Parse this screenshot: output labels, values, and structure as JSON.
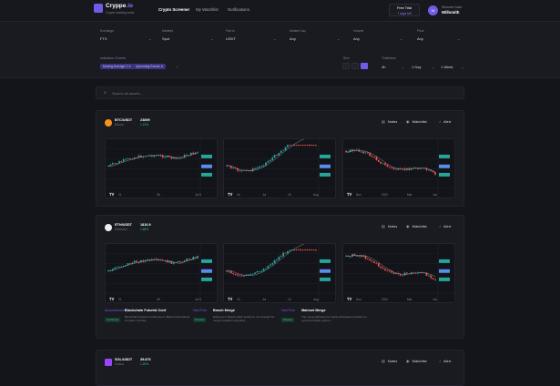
{
  "app": {
    "name_main": "Cryppe",
    "name_suffix": ".io",
    "tagline": "Crypto trading tools"
  },
  "nav": [
    {
      "label": "Crypto Screener"
    },
    {
      "label": "My Watchlist"
    },
    {
      "label": "Notifications"
    }
  ],
  "trial": {
    "line1": "Free Trial",
    "line2": "7 days left"
  },
  "user": {
    "initials": "W",
    "welcome": "Welcome back",
    "name": "Willsmith"
  },
  "filters": {
    "exchange": {
      "label": "Exchange",
      "value": "FTX"
    },
    "markets": {
      "label": "Markets",
      "value": "Spot"
    },
    "pair_to": {
      "label": "Pair to",
      "value": "USDT"
    },
    "market_cap": {
      "label": "Market Cap",
      "value": "Any"
    },
    "volume": {
      "label": "Volume",
      "value": "Any"
    },
    "price": {
      "label": "Price",
      "value": "Any"
    },
    "indicators": {
      "label": "Indicators / Events",
      "chips": [
        "Moving Average 2",
        "Upcoming Events"
      ]
    },
    "size": {
      "label": "Size"
    },
    "timeframe": {
      "label": "Timeframe",
      "values": [
        "4h",
        "1 Day",
        "1 Week"
      ]
    }
  },
  "search": {
    "placeholder": "Search all assets..."
  },
  "actions": {
    "notes": "Notes",
    "watchlist": "Watchlist",
    "alert": "Alert"
  },
  "cards": [
    {
      "symbol": "BTC/USDT",
      "name": "Bitcoin",
      "price": "23899",
      "change": "1.13%",
      "coin_color": "#f7931a",
      "charts": [
        {
          "xticks": [
            "21",
            "28",
            "Jul 5"
          ]
        },
        {
          "xticks": [
            "15",
            "Jul",
            "15",
            "Aug"
          ]
        },
        {
          "xticks": [
            "Nov",
            "2022",
            "Mar",
            "Jun"
          ]
        }
      ]
    },
    {
      "symbol": "ETH/USDT",
      "name": "Ethereum",
      "price": "1816.9",
      "change": "1.68%",
      "coin_color": "#eeeeee",
      "charts": [
        {
          "xticks": [
            "21",
            "28",
            "Jul 5"
          ]
        },
        {
          "xticks": [
            "15",
            "Jul",
            "15",
            "Aug"
          ]
        },
        {
          "xticks": [
            "Nov",
            "2022",
            "Mar",
            "Jun"
          ]
        }
      ],
      "news": [
        {
          "tag": "Announcement",
          "title": "Blockchain Futurist Conf",
          "body": "Blockchain Futurist Conference in Miami International Complex, Florida...",
          "badge": "Confirmed"
        },
        {
          "tag": "Hard Fork",
          "title": "Bosch Merge",
          "body": "Ethereum's Bosch public testnet to run through the merge transition expected...",
          "badge": "Release"
        },
        {
          "tag": "Hard Fork",
          "title": "Mainnet Merge",
          "body": "The merge (Ethereum's highly anticipated transition to a proof-of-stake system...",
          "badge": "Release"
        }
      ]
    },
    {
      "symbol": "SOL/USDT",
      "name": "Solana",
      "price": "39.876",
      "change": "1.26%",
      "coin_color": "#9945ff"
    }
  ],
  "colors": {
    "accent": "#6c5ce7",
    "up": "#26a69a",
    "down": "#ef5350",
    "ma": "#8a8fa0"
  }
}
